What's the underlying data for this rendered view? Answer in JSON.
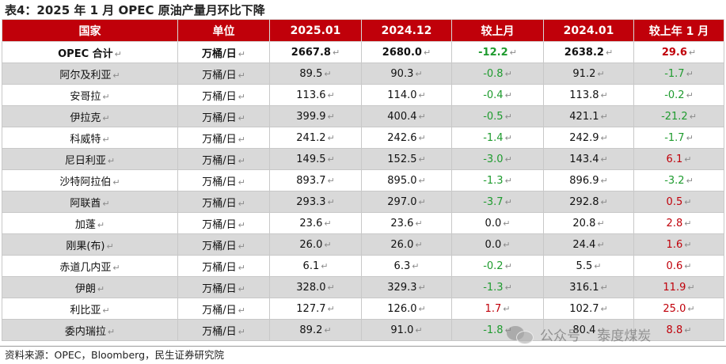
{
  "title": "表4：2025 年 1 月 OPEC 原油产量月环比下降",
  "header": [
    "国家",
    "单位",
    "2025.01",
    "2024.12",
    "较上月",
    "2024.01",
    "较上年 1 月"
  ],
  "mark": "↵",
  "rows": [
    {
      "country": "OPEC 合计",
      "unit": "万桶/日",
      "v2501": "2667.8",
      "v2412": "2680.0",
      "mom": "-12.2",
      "v2401": "2638.2",
      "yoy": "29.6"
    },
    {
      "country": "阿尔及利亚",
      "unit": "万桶/日",
      "v2501": "89.5",
      "v2412": "90.3",
      "mom": "-0.8",
      "v2401": "91.2",
      "yoy": "-1.7"
    },
    {
      "country": "安哥拉",
      "unit": "万桶/日",
      "v2501": "113.6",
      "v2412": "114.0",
      "mom": "-0.4",
      "v2401": "113.8",
      "yoy": "-0.2"
    },
    {
      "country": "伊拉克",
      "unit": "万桶/日",
      "v2501": "399.9",
      "v2412": "400.4",
      "mom": "-0.5",
      "v2401": "421.1",
      "yoy": "-21.2"
    },
    {
      "country": "科威特",
      "unit": "万桶/日",
      "v2501": "241.2",
      "v2412": "242.6",
      "mom": "-1.4",
      "v2401": "242.9",
      "yoy": "-1.7"
    },
    {
      "country": "尼日利亚",
      "unit": "万桶/日",
      "v2501": "149.5",
      "v2412": "152.5",
      "mom": "-3.0",
      "v2401": "143.4",
      "yoy": "6.1"
    },
    {
      "country": "沙特阿拉伯",
      "unit": "万桶/日",
      "v2501": "893.7",
      "v2412": "895.0",
      "mom": "-1.3",
      "v2401": "896.9",
      "yoy": "-3.2"
    },
    {
      "country": "阿联酋",
      "unit": "万桶/日",
      "v2501": "293.3",
      "v2412": "297.0",
      "mom": "-3.7",
      "v2401": "292.8",
      "yoy": "0.5"
    },
    {
      "country": "加蓬",
      "unit": "万桶/日",
      "v2501": "23.6",
      "v2412": "23.6",
      "mom": "0.0",
      "v2401": "20.8",
      "yoy": "2.8"
    },
    {
      "country": "刚果(布)",
      "unit": "万桶/日",
      "v2501": "26.0",
      "v2412": "26.0",
      "mom": "0.0",
      "v2401": "24.4",
      "yoy": "1.6"
    },
    {
      "country": "赤道几内亚",
      "unit": "万桶/日",
      "v2501": "6.1",
      "v2412": "6.3",
      "mom": "-0.2",
      "v2401": "5.5",
      "yoy": "0.6"
    },
    {
      "country": "伊朗",
      "unit": "万桶/日",
      "v2501": "328.0",
      "v2412": "329.3",
      "mom": "-1.3",
      "v2401": "316.1",
      "yoy": "11.9"
    },
    {
      "country": "利比亚",
      "unit": "万桶/日",
      "v2501": "127.7",
      "v2412": "126.0",
      "mom": "1.7",
      "v2401": "102.7",
      "yoy": "25.0"
    },
    {
      "country": "委内瑞拉",
      "unit": "万桶/日",
      "v2501": "89.2",
      "v2412": "91.0",
      "mom": "-1.8",
      "v2401": "80.4",
      "yoy": "8.8"
    }
  ],
  "footer": "资料来源：OPEC，Bloomberg，民生证券研究院",
  "watermark": {
    "part1": "公众号",
    "sep": "·",
    "part2": "泰度煤炭"
  },
  "colors": {
    "header_bg": "#c0000a",
    "positive": "#c0000a",
    "negative": "#1e9b2e",
    "stripe": "#d9d9d9"
  }
}
